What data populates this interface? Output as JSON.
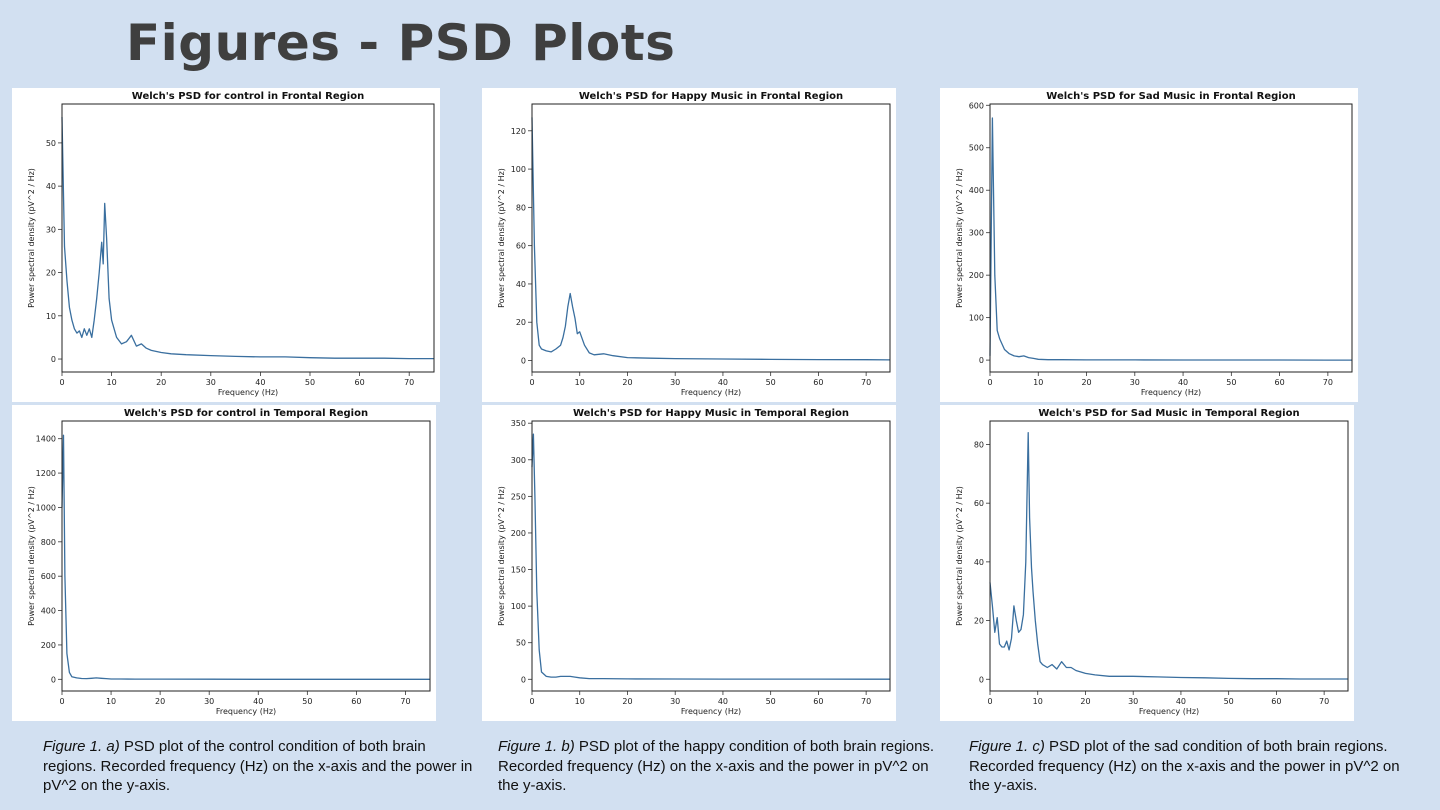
{
  "slide": {
    "title": "Figures - PSD Plots"
  },
  "colors": {
    "background": "#d2e0f1",
    "line": "#3a6f9f",
    "title_text": "#3f3f3f"
  },
  "captions": [
    {
      "label": "Figure 1. a)",
      "text": " PSD plot of the control condition of both brain regions. Recorded frequency (Hz) on the x-axis and the power in pV^2 on the y-axis."
    },
    {
      "label": "Figure 1. b)",
      "text": " PSD plot of the happy condition of both brain regions. Recorded frequency (Hz) on the x-axis and the power in pV^2 on the y-axis."
    },
    {
      "label": "Figure 1. c)",
      "text": " PSD plot of the sad condition of both brain regions. Recorded frequency (Hz) on the x-axis and the power in pV^2 on the y-axis."
    }
  ],
  "chart_data": [
    {
      "type": "line",
      "title": "Welch's PSD for control in Frontal Region",
      "xlabel": "Frequency (Hz)",
      "ylabel": "Power spectral density (pV^2 / Hz)",
      "xlim": [
        0,
        75
      ],
      "ylim": [
        -3,
        59
      ],
      "xticks": [
        0,
        10,
        20,
        30,
        40,
        50,
        60,
        70
      ],
      "yticks": [
        0,
        10,
        20,
        30,
        40,
        50
      ],
      "grid": false,
      "x": [
        0,
        0.5,
        1,
        1.5,
        2,
        2.5,
        3,
        3.5,
        4,
        4.5,
        5,
        5.5,
        6,
        6.5,
        7,
        7.5,
        8,
        8.3,
        8.6,
        9,
        9.5,
        10,
        10.5,
        11,
        12,
        13,
        14,
        15,
        16,
        17,
        18,
        20,
        22,
        25,
        30,
        35,
        40,
        45,
        50,
        55,
        60,
        65,
        70,
        75
      ],
      "y": [
        56,
        26,
        18,
        12,
        9,
        7,
        6,
        6.5,
        5,
        7,
        5.5,
        7,
        5,
        9,
        14,
        20,
        27,
        22,
        36,
        28,
        14,
        9,
        7,
        5,
        3.5,
        4,
        5.5,
        3,
        3.5,
        2.5,
        2,
        1.5,
        1.2,
        1,
        0.8,
        0.6,
        0.5,
        0.5,
        0.3,
        0.2,
        0.2,
        0.2,
        0.1,
        0.1
      ]
    },
    {
      "type": "line",
      "title": "Welch's PSD for Happy Music in Frontal Region",
      "xlabel": "Frequency (Hz)",
      "ylabel": "Power spectral density (pV^2 / Hz)",
      "xlim": [
        0,
        75
      ],
      "ylim": [
        -6,
        134
      ],
      "xticks": [
        0,
        10,
        20,
        30,
        40,
        50,
        60,
        70
      ],
      "yticks": [
        0,
        20,
        40,
        60,
        80,
        100,
        120
      ],
      "grid": false,
      "x": [
        0,
        0.5,
        1,
        1.5,
        2,
        3,
        4,
        5,
        6,
        6.5,
        7,
        7.5,
        8,
        8.5,
        9,
        9.5,
        10,
        11,
        12,
        13,
        15,
        17,
        20,
        25,
        30,
        40,
        50,
        60,
        70,
        75
      ],
      "y": [
        127,
        60,
        20,
        8,
        6,
        5,
        4.5,
        6,
        8,
        12,
        18,
        28,
        35,
        28,
        22,
        14,
        15,
        8,
        4,
        3,
        3.5,
        2.5,
        1.5,
        1.2,
        1,
        0.8,
        0.6,
        0.5,
        0.4,
        0.3
      ]
    },
    {
      "type": "line",
      "title": "Welch's PSD for Sad Music in Frontal Region",
      "xlabel": "Frequency (Hz)",
      "ylabel": "Power spectral density (pV^2 / Hz)",
      "xlim": [
        0,
        75
      ],
      "ylim": [
        -28,
        603
      ],
      "xticks": [
        0,
        10,
        20,
        30,
        40,
        50,
        60,
        70
      ],
      "yticks": [
        0,
        100,
        200,
        300,
        400,
        500,
        600
      ],
      "grid": false,
      "x": [
        0,
        0.5,
        1,
        1.5,
        2,
        3,
        4,
        5,
        6,
        7,
        8,
        9,
        10,
        12,
        15,
        20,
        30,
        40,
        50,
        60,
        70,
        75
      ],
      "y": [
        10,
        570,
        200,
        70,
        50,
        25,
        15,
        10,
        8,
        10,
        6,
        4,
        2,
        1,
        1,
        0.5,
        0.5,
        0.3,
        0.2,
        0.2,
        0.1,
        0.1
      ]
    },
    {
      "type": "line",
      "title": "Welch's PSD for control in Temporal Region",
      "xlabel": "Frequency (Hz)",
      "ylabel": "Power spectral density (pV^2 / Hz)",
      "xlim": [
        0,
        75
      ],
      "ylim": [
        -68,
        1503
      ],
      "xticks": [
        0,
        10,
        20,
        30,
        40,
        50,
        60,
        70
      ],
      "yticks": [
        0,
        200,
        400,
        600,
        800,
        1000,
        1200,
        1400
      ],
      "grid": false,
      "x": [
        0,
        0.3,
        0.6,
        1,
        1.5,
        2,
        3,
        4,
        5,
        6,
        7,
        8,
        9,
        10,
        12,
        15,
        20,
        30,
        40,
        50,
        60,
        70,
        75
      ],
      "y": [
        1000,
        1420,
        600,
        150,
        40,
        15,
        8,
        5,
        4,
        6,
        8,
        6,
        4,
        2,
        2,
        1,
        1,
        0.5,
        0.3,
        0.2,
        0.2,
        0.1,
        0.1
      ]
    },
    {
      "type": "line",
      "title": "Welch's PSD for Happy Music in Temporal Region",
      "xlabel": "Frequency (Hz)",
      "ylabel": "Power spectral density (pV^2 / Hz)",
      "xlim": [
        0,
        75
      ],
      "ylim": [
        -16,
        353
      ],
      "xticks": [
        0,
        10,
        20,
        30,
        40,
        50,
        60,
        70
      ],
      "yticks": [
        0,
        50,
        100,
        150,
        200,
        250,
        300,
        350
      ],
      "grid": false,
      "x": [
        0,
        0.3,
        0.6,
        1,
        1.5,
        2,
        3,
        4,
        5,
        6,
        7,
        8,
        9,
        10,
        12,
        15,
        20,
        30,
        40,
        50,
        60,
        70,
        75
      ],
      "y": [
        290,
        335,
        250,
        120,
        40,
        10,
        4,
        3,
        3,
        4,
        4,
        4,
        3,
        2,
        1,
        1,
        0.5,
        0.4,
        0.3,
        0.2,
        0.2,
        0.1,
        0.1
      ]
    },
    {
      "type": "line",
      "title": "Welch's PSD for Sad Music in Temporal Region",
      "xlabel": "Frequency (Hz)",
      "ylabel": "Power spectral density (pV^2 / Hz)",
      "xlim": [
        0,
        75
      ],
      "ylim": [
        -4,
        88
      ],
      "xticks": [
        0,
        10,
        20,
        30,
        40,
        50,
        60,
        70
      ],
      "yticks": [
        0,
        20,
        40,
        60,
        80
      ],
      "grid": false,
      "x": [
        0,
        0.5,
        1,
        1.5,
        2,
        2.5,
        3,
        3.5,
        4,
        4.5,
        5,
        5.5,
        6,
        6.5,
        7,
        7.5,
        8,
        8.3,
        8.7,
        9,
        9.5,
        10,
        10.5,
        11,
        12,
        13,
        14,
        15,
        16,
        17,
        18,
        20,
        22,
        25,
        30,
        35,
        40,
        45,
        50,
        55,
        60,
        65,
        70,
        75
      ],
      "y": [
        33,
        25,
        16,
        21,
        12,
        11,
        11,
        13,
        10,
        14,
        25,
        20,
        16,
        17,
        22,
        40,
        84,
        55,
        38,
        30,
        20,
        12,
        6,
        5,
        4,
        5,
        3.5,
        6,
        4,
        4,
        3,
        2,
        1.5,
        1,
        1,
        0.8,
        0.6,
        0.5,
        0.3,
        0.2,
        0.2,
        0.1,
        0.1,
        0.1
      ]
    }
  ]
}
